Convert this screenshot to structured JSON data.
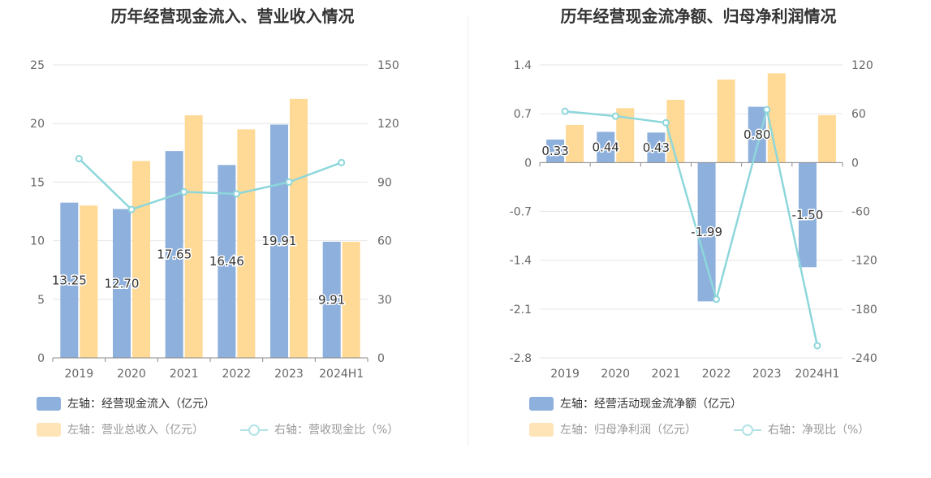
{
  "chart_data": [
    {
      "type": "bar+line",
      "title": "历年经营现金流入、营业收入情况",
      "categories": [
        "2019",
        "2020",
        "2021",
        "2022",
        "2023",
        "2024H1"
      ],
      "left_axis": {
        "ylim": [
          0,
          25
        ],
        "ticks": [
          "0",
          "5",
          "10",
          "15",
          "20",
          "25"
        ],
        "tick_values": [
          0,
          5,
          10,
          15,
          20,
          25
        ]
      },
      "right_axis": {
        "ylim": [
          0,
          150
        ],
        "ticks": [
          "0",
          "30",
          "60",
          "90",
          "120",
          "150"
        ],
        "tick_values": [
          0,
          30,
          60,
          90,
          120,
          150
        ]
      },
      "series": [
        {
          "name": "左轴：经营现金流入（亿元）",
          "kind": "bar",
          "axis": "left",
          "color": "#8eb0dd",
          "values": [
            13.25,
            12.7,
            17.65,
            16.46,
            19.91,
            9.91
          ],
          "labels": [
            "13.25",
            "12.70",
            "17.65",
            "16.46",
            "19.91",
            "9.91"
          ]
        },
        {
          "name": "左轴：营业总收入（亿元）",
          "kind": "bar",
          "axis": "left",
          "color": "#ffd996",
          "values": [
            13.0,
            16.8,
            20.7,
            19.5,
            22.1,
            9.9
          ]
        },
        {
          "name": "右轴：营收现金比（%）",
          "kind": "line",
          "axis": "right",
          "color": "#8dd7db",
          "values": [
            102,
            76,
            85,
            84,
            90,
            100
          ]
        }
      ]
    },
    {
      "type": "bar+line",
      "title": "历年经营现金流净额、归母净利润情况",
      "categories": [
        "2019",
        "2020",
        "2021",
        "2022",
        "2023",
        "2024H1"
      ],
      "left_axis": {
        "ylim": [
          -2.8,
          1.4
        ],
        "ticks": [
          "-2.8",
          "-2.1",
          "-1.4",
          "-0.7",
          "0",
          "0.7",
          "1.4"
        ],
        "tick_values": [
          -2.8,
          -2.1,
          -1.4,
          -0.7,
          0,
          0.7,
          1.4
        ]
      },
      "right_axis": {
        "ylim": [
          -240,
          120
        ],
        "ticks": [
          "-240",
          "-180",
          "-120",
          "-60",
          "0",
          "60",
          "120"
        ],
        "tick_values": [
          -240,
          -180,
          -120,
          -60,
          0,
          60,
          120
        ]
      },
      "series": [
        {
          "name": "左轴：经营活动现金流净额（亿元）",
          "kind": "bar",
          "axis": "left",
          "color": "#8eb0dd",
          "values": [
            0.33,
            0.44,
            0.43,
            -1.99,
            0.8,
            -1.5
          ],
          "labels": [
            "0.33",
            "0.44",
            "0.43",
            "-1.99",
            "0.80",
            "-1.50"
          ]
        },
        {
          "name": "左轴：归母净利润（亿元）",
          "kind": "bar",
          "axis": "left",
          "color": "#ffd996",
          "values": [
            0.54,
            0.78,
            0.9,
            1.19,
            1.28,
            0.68
          ]
        },
        {
          "name": "右轴：净现比（%）",
          "kind": "line",
          "axis": "right",
          "color": "#8dd7db",
          "values": [
            63,
            57,
            49,
            -168,
            65,
            -225
          ]
        }
      ]
    }
  ]
}
